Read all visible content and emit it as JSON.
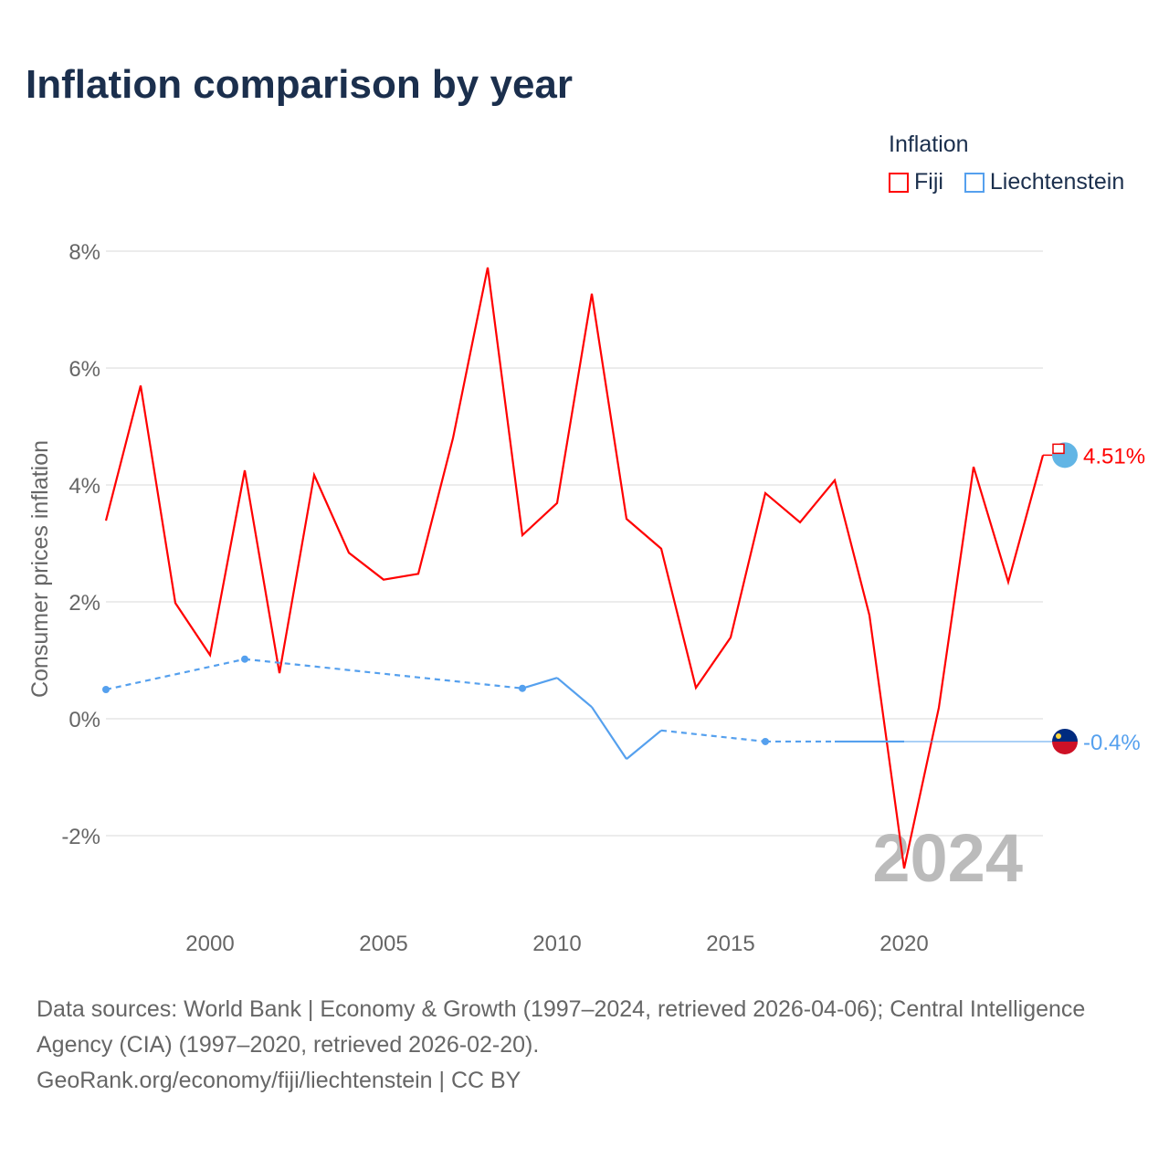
{
  "title": "Inflation comparison by year",
  "legend": {
    "title": "Inflation",
    "items": [
      {
        "label": "Fiji",
        "color": "#ff0000"
      },
      {
        "label": "Liechtenstein",
        "color": "#55a0ee"
      }
    ]
  },
  "source": {
    "line1": "Data sources: World Bank | Economy & Growth (1997–2024, retrieved 2026-04-06); Central Intelligence Agency (CIA) (1997–2020, retrieved 2026-02-20).",
    "line2": "GeoRank.org/economy/fiji/liechtenstein | CC BY"
  },
  "chart_data": {
    "type": "line",
    "ylabel": "Consumer prices inflation",
    "xlabel": "",
    "ylim": [
      -3,
      8.5
    ],
    "xlim": [
      1997,
      2024
    ],
    "yticks": [
      {
        "v": 8,
        "label": "8%"
      },
      {
        "v": 6,
        "label": "6%"
      },
      {
        "v": 4,
        "label": "4%"
      },
      {
        "v": 2,
        "label": "2%"
      },
      {
        "v": 0,
        "label": "0%"
      },
      {
        "v": -2,
        "label": "-2%"
      }
    ],
    "xticks": [
      {
        "v": 2000,
        "label": "2000"
      },
      {
        "v": 2005,
        "label": "2005"
      },
      {
        "v": 2010,
        "label": "2010"
      },
      {
        "v": 2015,
        "label": "2015"
      },
      {
        "v": 2020,
        "label": "2020"
      }
    ],
    "year_watermark": "2024",
    "series": [
      {
        "name": "Fiji",
        "color": "#ff0000",
        "end_label": "4.51%",
        "x": [
          1997,
          1998,
          1999,
          2000,
          2001,
          2002,
          2003,
          2004,
          2005,
          2006,
          2007,
          2008,
          2009,
          2010,
          2011,
          2012,
          2013,
          2014,
          2015,
          2016,
          2017,
          2018,
          2019,
          2020,
          2021,
          2022,
          2023,
          2024
        ],
        "y": [
          3.39,
          5.7,
          1.98,
          1.09,
          4.25,
          0.78,
          4.17,
          2.84,
          2.38,
          2.48,
          4.8,
          7.72,
          3.14,
          3.69,
          7.27,
          3.42,
          2.91,
          0.53,
          1.39,
          3.86,
          3.36,
          4.08,
          1.77,
          -2.56,
          0.19,
          4.31,
          2.34,
          4.51
        ]
      },
      {
        "name": "Liechtenstein",
        "color": "#55a0ee",
        "end_label": "-0.4%",
        "x": [
          1997,
          2001,
          2009,
          2010,
          2011,
          2012,
          2013,
          2016,
          2018,
          2019,
          2020
        ],
        "y": [
          0.5,
          1.02,
          0.52,
          0.7,
          0.2,
          -0.69,
          -0.2,
          -0.39,
          -0.39,
          -0.39,
          -0.39
        ]
      }
    ]
  }
}
